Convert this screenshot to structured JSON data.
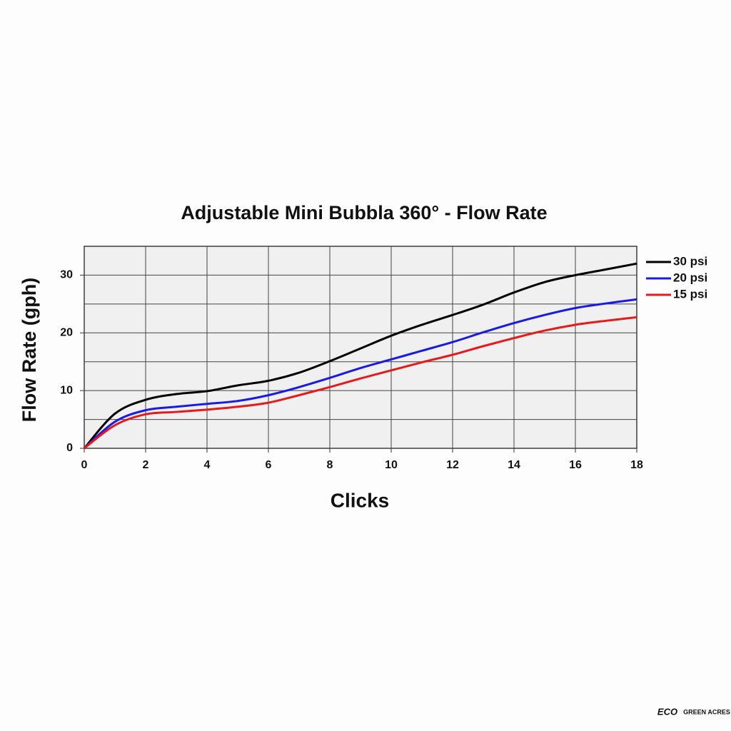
{
  "chart_data": {
    "type": "line",
    "title": "Adjustable Mini Bubbla 360° - Flow Rate",
    "x_label": "Clicks",
    "y_label": "Flow Rate (gph)",
    "x": [
      0,
      1,
      2,
      3,
      4,
      5,
      6,
      7,
      8,
      9,
      10,
      11,
      12,
      13,
      14,
      15,
      16,
      17,
      18
    ],
    "series": [
      {
        "name": "30 psi",
        "color": "#000000",
        "values": [
          0,
          6.0,
          8.4,
          9.4,
          9.9,
          10.9,
          11.7,
          13.1,
          15.1,
          17.3,
          19.5,
          21.4,
          23.1,
          24.9,
          27.0,
          28.8,
          30.0,
          31.0,
          32.0
        ]
      },
      {
        "name": "20 psi",
        "color": "#1a1ae6",
        "values": [
          0,
          4.6,
          6.6,
          7.2,
          7.7,
          8.2,
          9.2,
          10.6,
          12.2,
          13.9,
          15.4,
          16.9,
          18.4,
          20.1,
          21.7,
          23.1,
          24.3,
          25.1,
          25.8
        ]
      },
      {
        "name": "15 psi",
        "color": "#e61a1a",
        "values": [
          0,
          4.0,
          5.9,
          6.3,
          6.7,
          7.2,
          7.9,
          9.2,
          10.6,
          12.1,
          13.5,
          14.9,
          16.2,
          17.7,
          19.1,
          20.4,
          21.4,
          22.1,
          22.7
        ]
      }
    ],
    "xlim": [
      0,
      18
    ],
    "xticks": [
      0,
      2,
      4,
      6,
      8,
      10,
      12,
      14,
      16,
      18
    ],
    "ylim": [
      0,
      35
    ],
    "yticks": [
      0,
      10,
      20,
      30
    ],
    "yminor": [
      5,
      15,
      25,
      35
    ],
    "grid": true,
    "legend": "right",
    "footer": [
      "ECO",
      "GREEN ACRES"
    ]
  }
}
